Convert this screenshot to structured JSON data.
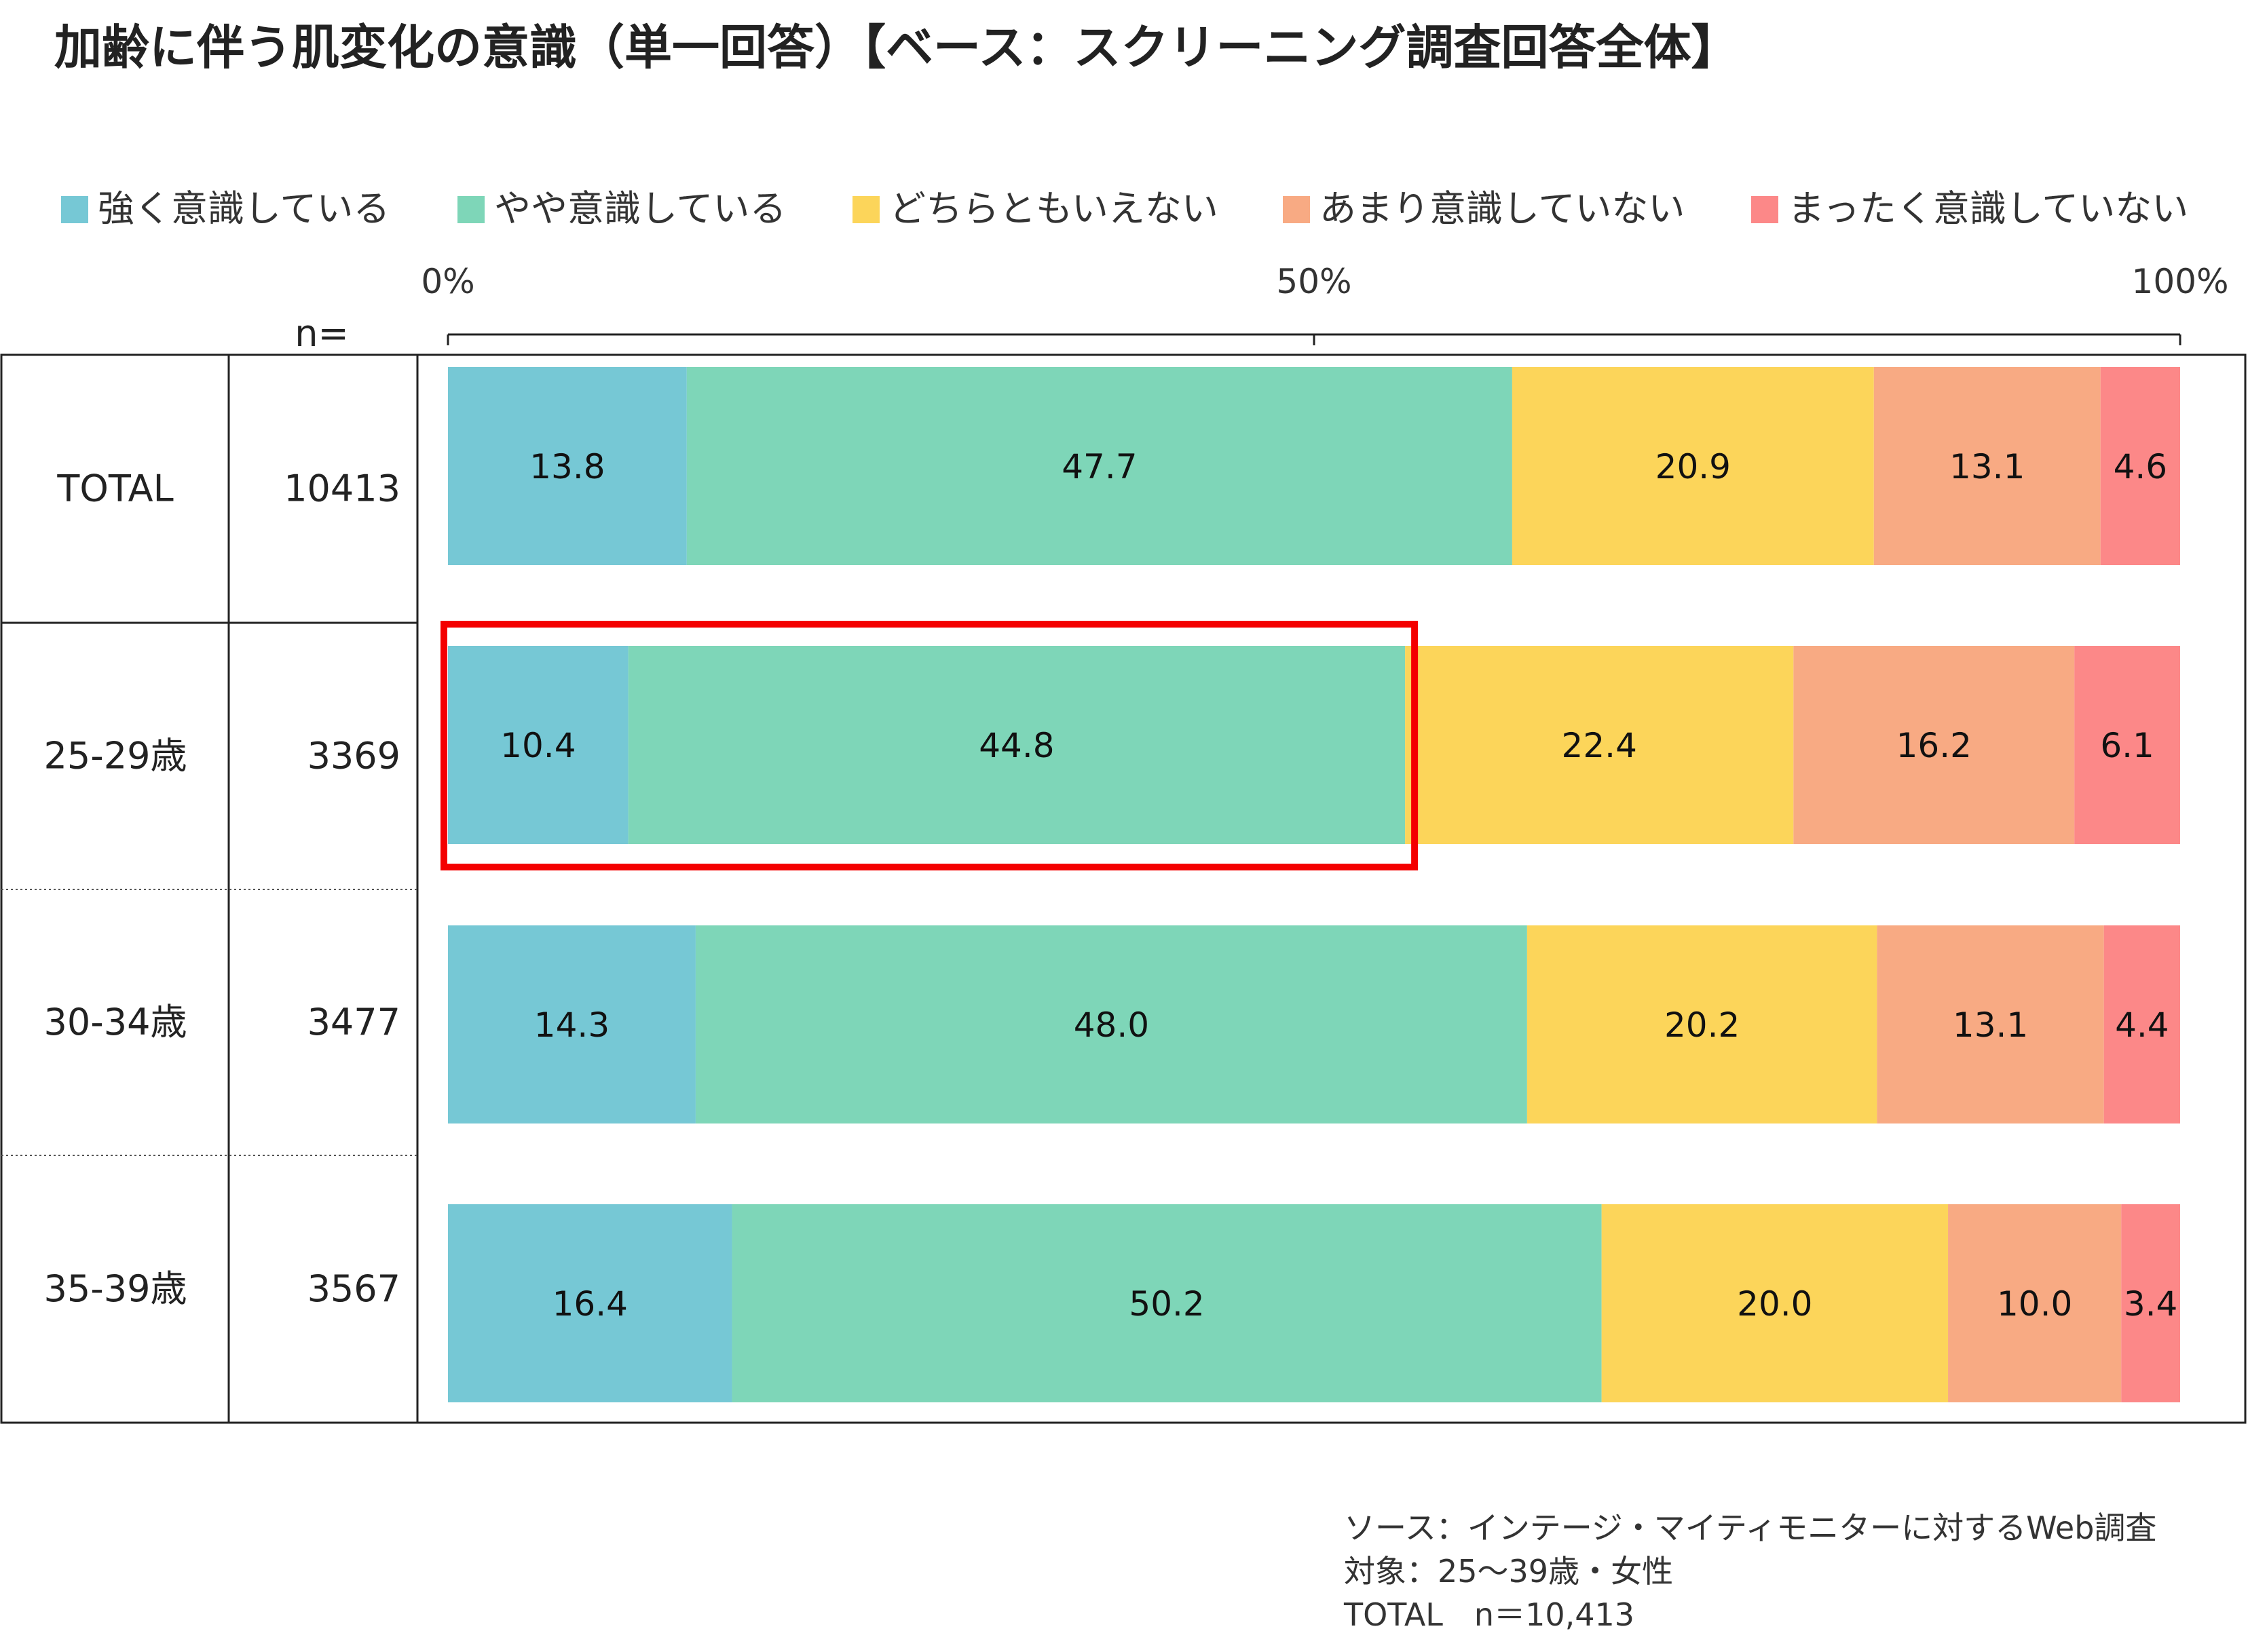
{
  "title": "加齢に伴う肌変化の意識（単一回答）【ベース：スクリーニング調査回答全体】",
  "n_header": "n=",
  "source_lines": [
    "ソース：インテージ・マイティモニターに対するWeb調査",
    "対象：25〜39歳・女性",
    "TOTAL　n＝10,413"
  ],
  "colors": {
    "series": [
      "#76C8D5",
      "#7ED6B8",
      "#FCD55A",
      "#F8AA83",
      "#FC8888"
    ],
    "highlight": "#F40000"
  },
  "chart_data": {
    "type": "bar",
    "orientation": "horizontal",
    "stacked": true,
    "categories": [
      "TOTAL",
      "25-29歳",
      "30-34歳",
      "35-39歳"
    ],
    "n_values": [
      "10413",
      "3369",
      "3477",
      "3567"
    ],
    "series": [
      {
        "name": "強く意識している",
        "values": [
          13.8,
          10.4,
          14.3,
          16.4
        ]
      },
      {
        "name": "やや意識している",
        "values": [
          47.7,
          44.8,
          48.0,
          50.2
        ]
      },
      {
        "name": "どちらともいえない",
        "values": [
          20.9,
          22.4,
          20.2,
          20.0
        ]
      },
      {
        "name": "あまり意識していない",
        "values": [
          13.1,
          16.2,
          13.1,
          10.0
        ]
      },
      {
        "name": "まったく意識していない",
        "values": [
          4.6,
          6.1,
          4.4,
          3.4
        ]
      }
    ],
    "xlim": [
      0,
      100
    ],
    "xticks": [
      0,
      50,
      100
    ],
    "xtick_labels": [
      "0%",
      "50%",
      "100%"
    ],
    "legend_position": "top",
    "grid": false,
    "highlight": {
      "category": "25-29歳",
      "series": [
        "強く意識している",
        "やや意識している"
      ]
    }
  }
}
